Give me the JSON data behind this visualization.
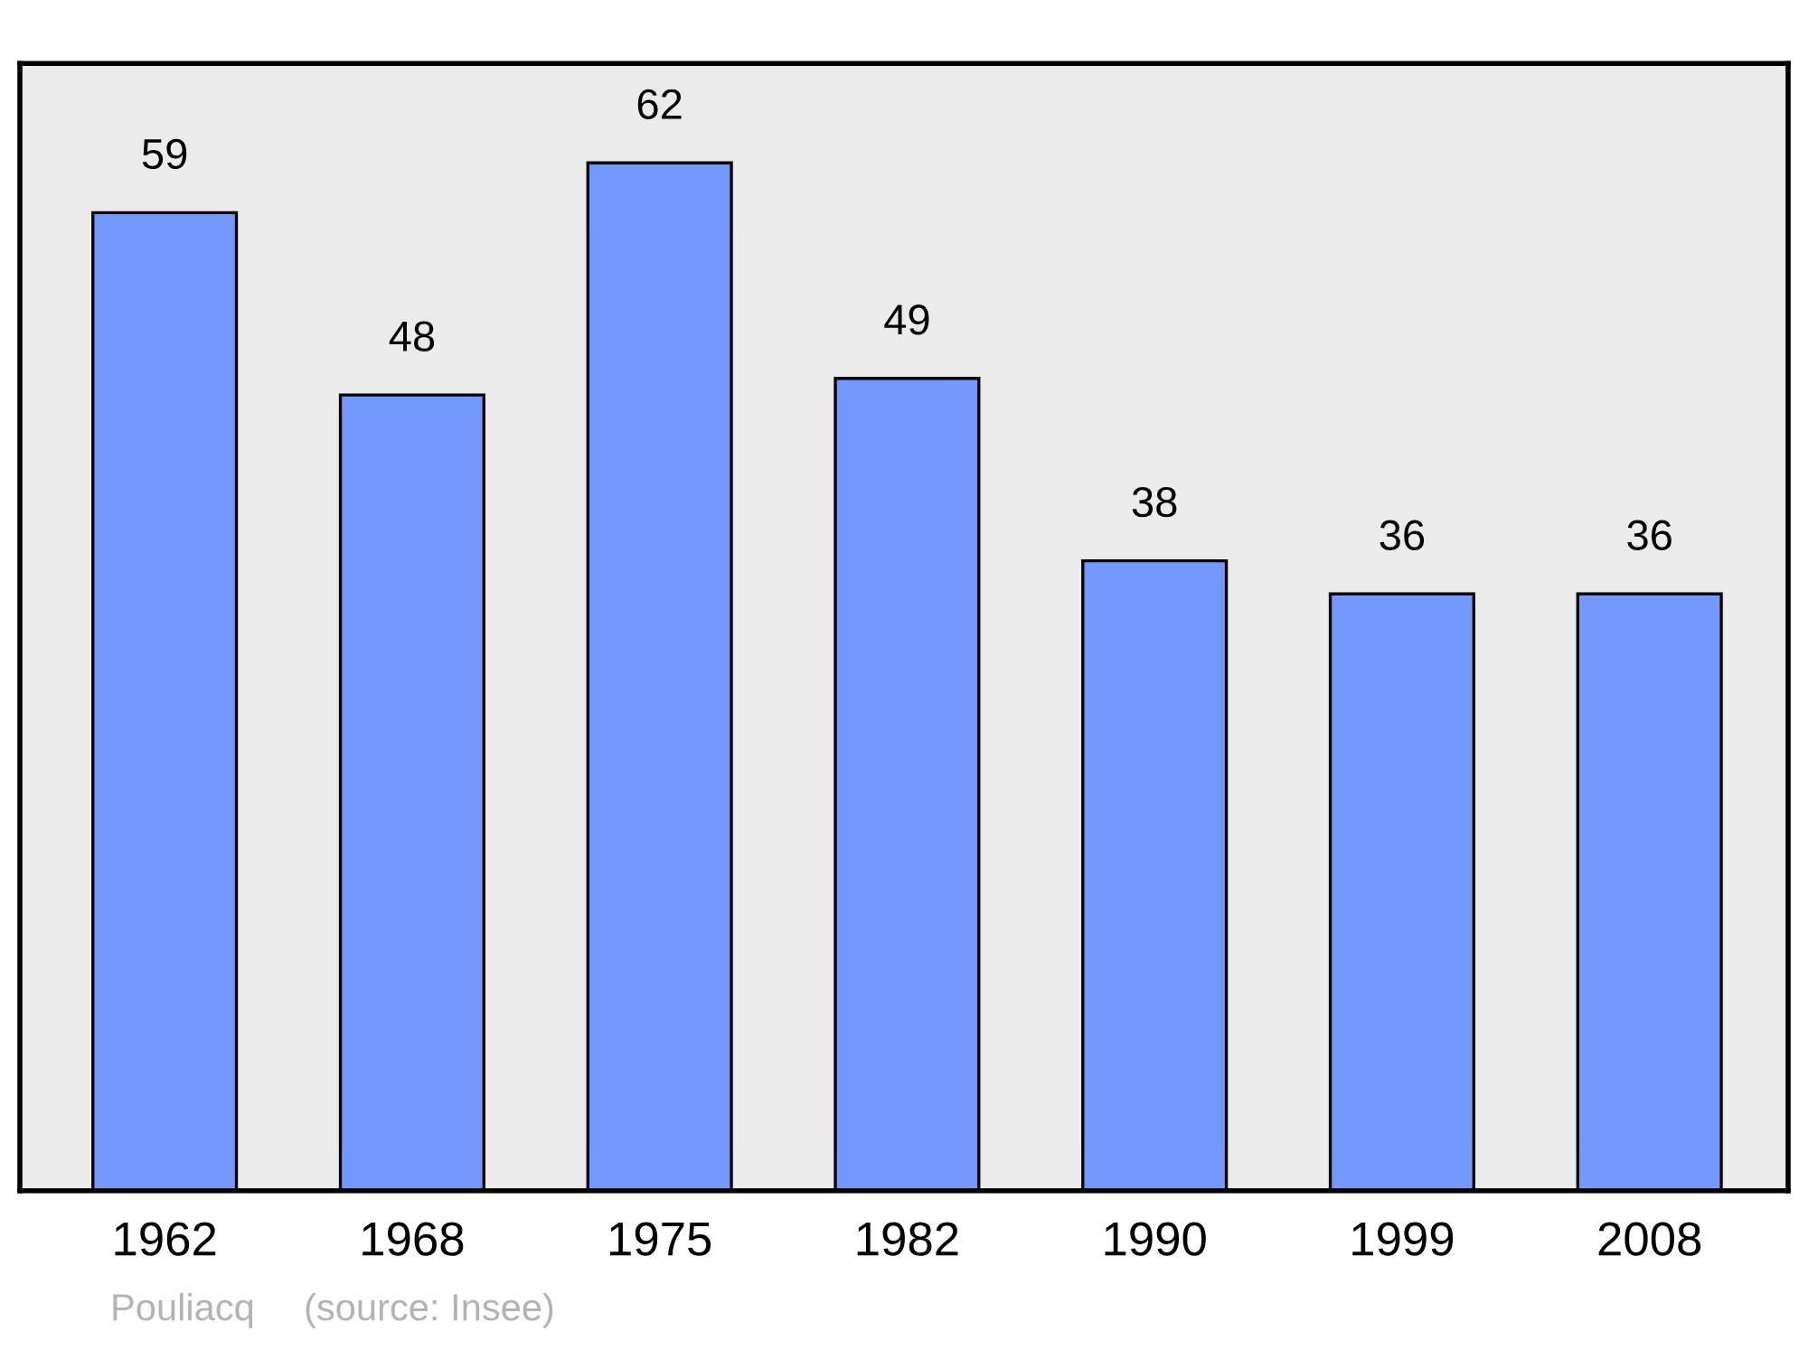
{
  "chart_data": {
    "type": "bar",
    "categories": [
      "1962",
      "1968",
      "1975",
      "1982",
      "1990",
      "1999",
      "2008"
    ],
    "values": [
      59,
      48,
      62,
      49,
      38,
      36,
      36
    ],
    "color": "#7399ff",
    "ylim": [
      0,
      68
    ],
    "data_labels": true,
    "grid": false,
    "legend": false,
    "tick_labels": "x",
    "annotations": [
      "Pouliacq",
      "(source: Insee)"
    ]
  }
}
